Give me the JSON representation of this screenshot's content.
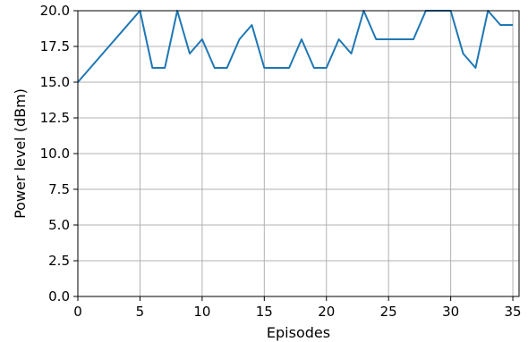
{
  "chart_data": {
    "type": "line",
    "title": "",
    "xlabel": "Episodes",
    "ylabel": "Power level (dBm)",
    "xlim": [
      0,
      35.5
    ],
    "ylim": [
      0,
      20
    ],
    "grid": true,
    "x_ticks": [
      0,
      5,
      10,
      15,
      20,
      25,
      30,
      35
    ],
    "y_ticks": [
      0.0,
      2.5,
      5.0,
      7.5,
      10.0,
      12.5,
      15.0,
      17.5,
      20.0
    ],
    "x_tick_labels": [
      "0",
      "5",
      "10",
      "15",
      "20",
      "25",
      "30",
      "35"
    ],
    "y_tick_labels": [
      "0.0",
      "2.5",
      "5.0",
      "7.5",
      "10.0",
      "12.5",
      "15.0",
      "17.5",
      "20.0"
    ],
    "series": [
      {
        "color": "#1f77b4",
        "x": [
          0,
          5,
          6,
          7,
          8,
          9,
          10,
          11,
          12,
          13,
          14,
          15,
          16,
          17,
          18,
          19,
          20,
          21,
          22,
          23,
          24,
          25,
          26,
          27,
          28,
          29,
          30,
          31,
          32,
          33,
          34,
          35
        ],
        "y": [
          15,
          20,
          16,
          16,
          20,
          17,
          18,
          16,
          16,
          18,
          19,
          16,
          16,
          16,
          18,
          16,
          16,
          18,
          17,
          20,
          18,
          18,
          18,
          18,
          20,
          20,
          20,
          17,
          16,
          20,
          19,
          19
        ]
      }
    ]
  }
}
